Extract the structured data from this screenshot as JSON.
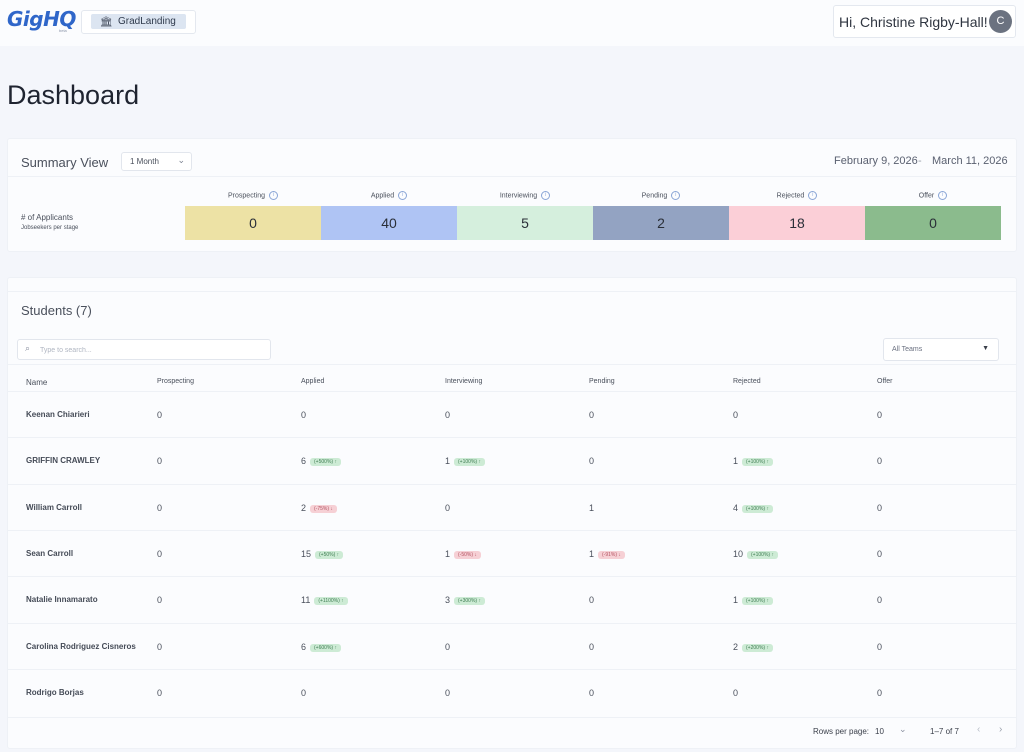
{
  "header": {
    "logo_text": "GigHQ",
    "logo_sub": "beta",
    "org_name": "GradLanding",
    "greeting": "Hi, Christine Rigby-Hall!",
    "avatar_initial": "C"
  },
  "page_title": "Dashboard",
  "summary": {
    "title": "Summary View",
    "period": "1 Month",
    "date_from": "February 9, 2026",
    "date_sep": "-",
    "date_to": "March 11, 2026",
    "row_label": "# of Applicants",
    "row_sub": "Jobseekers per stage",
    "stages": [
      {
        "label": "Prospecting",
        "value": "0",
        "color": "#ede2a5"
      },
      {
        "label": "Applied",
        "value": "40",
        "color": "#afc4f4"
      },
      {
        "label": "Interviewing",
        "value": "5",
        "color": "#d5efdd"
      },
      {
        "label": "Pending",
        "value": "2",
        "color": "#93a3c2"
      },
      {
        "label": "Rejected",
        "value": "18",
        "color": "#fbcfd7"
      },
      {
        "label": "Offer",
        "value": "0",
        "color": "#8bbb8d"
      }
    ]
  },
  "students": {
    "title": "Students (7)",
    "search_placeholder": "Type to search...",
    "team_filter": "All Teams",
    "columns": [
      "Name",
      "Prospecting",
      "Applied",
      "Interviewing",
      "Pending",
      "Rejected",
      "Offer"
    ],
    "rows": [
      {
        "name": "Keenan Chiarieri",
        "cells": [
          {
            "v": "0"
          },
          {
            "v": "0"
          },
          {
            "v": "0"
          },
          {
            "v": "0"
          },
          {
            "v": "0"
          },
          {
            "v": "0"
          }
        ]
      },
      {
        "name": "GRIFFIN CRAWLEY",
        "cells": [
          {
            "v": "0"
          },
          {
            "v": "6",
            "badge": "(+500%) ↑",
            "dir": "up"
          },
          {
            "v": "1",
            "badge": "(+100%) ↑",
            "dir": "up"
          },
          {
            "v": "0"
          },
          {
            "v": "1",
            "badge": "(+100%) ↑",
            "dir": "up"
          },
          {
            "v": "0"
          }
        ]
      },
      {
        "name": "William Carroll",
        "cells": [
          {
            "v": "0"
          },
          {
            "v": "2",
            "badge": "(-75%) ↓",
            "dir": "down"
          },
          {
            "v": "0"
          },
          {
            "v": "1"
          },
          {
            "v": "4",
            "badge": "(+100%) ↑",
            "dir": "up"
          },
          {
            "v": "0"
          }
        ]
      },
      {
        "name": "Sean Carroll",
        "cells": [
          {
            "v": "0"
          },
          {
            "v": "15",
            "badge": "(+50%) ↑",
            "dir": "up"
          },
          {
            "v": "1",
            "badge": "(-50%) ↓",
            "dir": "down"
          },
          {
            "v": "1",
            "badge": "(-91%) ↓",
            "dir": "down"
          },
          {
            "v": "10",
            "badge": "(+100%) ↑",
            "dir": "up"
          },
          {
            "v": "0"
          }
        ]
      },
      {
        "name": "Natalie Innamarato",
        "cells": [
          {
            "v": "0"
          },
          {
            "v": "11",
            "badge": "(+1100%) ↑",
            "dir": "up"
          },
          {
            "v": "3",
            "badge": "(+300%) ↑",
            "dir": "up"
          },
          {
            "v": "0"
          },
          {
            "v": "1",
            "badge": "(+100%) ↑",
            "dir": "up"
          },
          {
            "v": "0"
          }
        ]
      },
      {
        "name": "Carolina Rodriguez Cisneros",
        "cells": [
          {
            "v": "0"
          },
          {
            "v": "6",
            "badge": "(+600%) ↑",
            "dir": "up"
          },
          {
            "v": "0"
          },
          {
            "v": "0"
          },
          {
            "v": "2",
            "badge": "(+200%) ↑",
            "dir": "up"
          },
          {
            "v": "0"
          }
        ]
      },
      {
        "name": "Rodrigo Borjas",
        "cells": [
          {
            "v": "0"
          },
          {
            "v": "0"
          },
          {
            "v": "0"
          },
          {
            "v": "0"
          },
          {
            "v": "0"
          },
          {
            "v": "0"
          }
        ]
      }
    ],
    "pagination": {
      "rows_per_page_label": "Rows per page:",
      "rows_per_page": "10",
      "range": "1–7 of 7"
    }
  }
}
